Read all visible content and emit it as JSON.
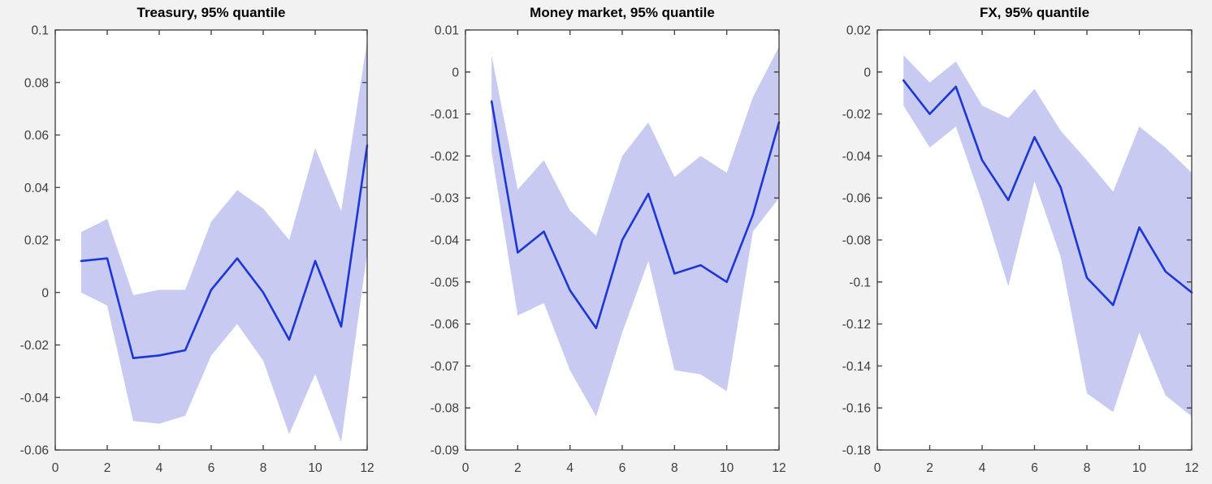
{
  "figure": {
    "background_color": "#f2f2f2",
    "plot_background_color": "#ffffff",
    "axis_color": "#3a3a3a",
    "tick_label_color": "#3d3d3d",
    "title_color": "#000000",
    "line_color": "#1b37d4",
    "band_color": "#c8caf2"
  },
  "chart_data": [
    {
      "type": "line",
      "title": "Treasury, 95% quantile",
      "x": [
        1,
        2,
        3,
        4,
        5,
        6,
        7,
        8,
        9,
        10,
        11,
        12
      ],
      "series": [
        {
          "name": "quantile_95_response",
          "values": [
            0.012,
            0.013,
            -0.025,
            -0.024,
            -0.022,
            0.001,
            0.013,
            0.0,
            -0.018,
            0.012,
            -0.013,
            0.056
          ]
        },
        {
          "name": "band_upper",
          "values": [
            0.023,
            0.028,
            -0.001,
            0.001,
            0.001,
            0.027,
            0.039,
            0.032,
            0.02,
            0.055,
            0.031,
            0.096
          ]
        },
        {
          "name": "band_lower",
          "values": [
            0.0,
            -0.005,
            -0.049,
            -0.05,
            -0.047,
            -0.024,
            -0.012,
            -0.026,
            -0.054,
            -0.031,
            -0.057,
            0.015
          ]
        }
      ],
      "xlim": [
        0,
        12
      ],
      "ylim": [
        -0.06,
        0.1
      ],
      "xticks": [
        0,
        2,
        4,
        6,
        8,
        10,
        12
      ],
      "ytick_step": 0.02,
      "xlabel": "",
      "ylabel": "",
      "grid": false,
      "legend": null
    },
    {
      "type": "line",
      "title": "Money market, 95% quantile",
      "x": [
        1,
        2,
        3,
        4,
        5,
        6,
        7,
        8,
        9,
        10,
        11,
        12
      ],
      "series": [
        {
          "name": "quantile_95_response",
          "values": [
            -0.007,
            -0.043,
            -0.038,
            -0.052,
            -0.061,
            -0.04,
            -0.029,
            -0.048,
            -0.046,
            -0.05,
            -0.034,
            -0.012
          ]
        },
        {
          "name": "band_upper",
          "values": [
            0.004,
            -0.028,
            -0.021,
            -0.033,
            -0.039,
            -0.02,
            -0.012,
            -0.025,
            -0.02,
            -0.024,
            -0.006,
            0.006
          ]
        },
        {
          "name": "band_lower",
          "values": [
            -0.019,
            -0.058,
            -0.055,
            -0.071,
            -0.082,
            -0.062,
            -0.045,
            -0.071,
            -0.072,
            -0.076,
            -0.038,
            -0.03
          ]
        }
      ],
      "xlim": [
        0,
        12
      ],
      "ylim": [
        -0.09,
        0.01
      ],
      "xticks": [
        0,
        2,
        4,
        6,
        8,
        10,
        12
      ],
      "ytick_step": 0.01,
      "xlabel": "",
      "ylabel": "",
      "grid": false,
      "legend": null
    },
    {
      "type": "line",
      "title": "FX, 95% quantile",
      "x": [
        1,
        2,
        3,
        4,
        5,
        6,
        7,
        8,
        9,
        10,
        11,
        12
      ],
      "series": [
        {
          "name": "quantile_95_response",
          "values": [
            -0.004,
            -0.02,
            -0.007,
            -0.042,
            -0.061,
            -0.031,
            -0.055,
            -0.098,
            -0.111,
            -0.074,
            -0.095,
            -0.105
          ]
        },
        {
          "name": "band_upper",
          "values": [
            0.008,
            -0.005,
            0.005,
            -0.016,
            -0.022,
            -0.008,
            -0.028,
            -0.042,
            -0.057,
            -0.026,
            -0.036,
            -0.048
          ]
        },
        {
          "name": "band_lower",
          "values": [
            -0.016,
            -0.036,
            -0.026,
            -0.062,
            -0.102,
            -0.052,
            -0.088,
            -0.153,
            -0.162,
            -0.124,
            -0.154,
            -0.164
          ]
        }
      ],
      "xlim": [
        0,
        12
      ],
      "ylim": [
        -0.18,
        0.02
      ],
      "xticks": [
        0,
        2,
        4,
        6,
        8,
        10,
        12
      ],
      "ytick_step": 0.02,
      "xlabel": "",
      "ylabel": "",
      "grid": false,
      "legend": null
    }
  ]
}
